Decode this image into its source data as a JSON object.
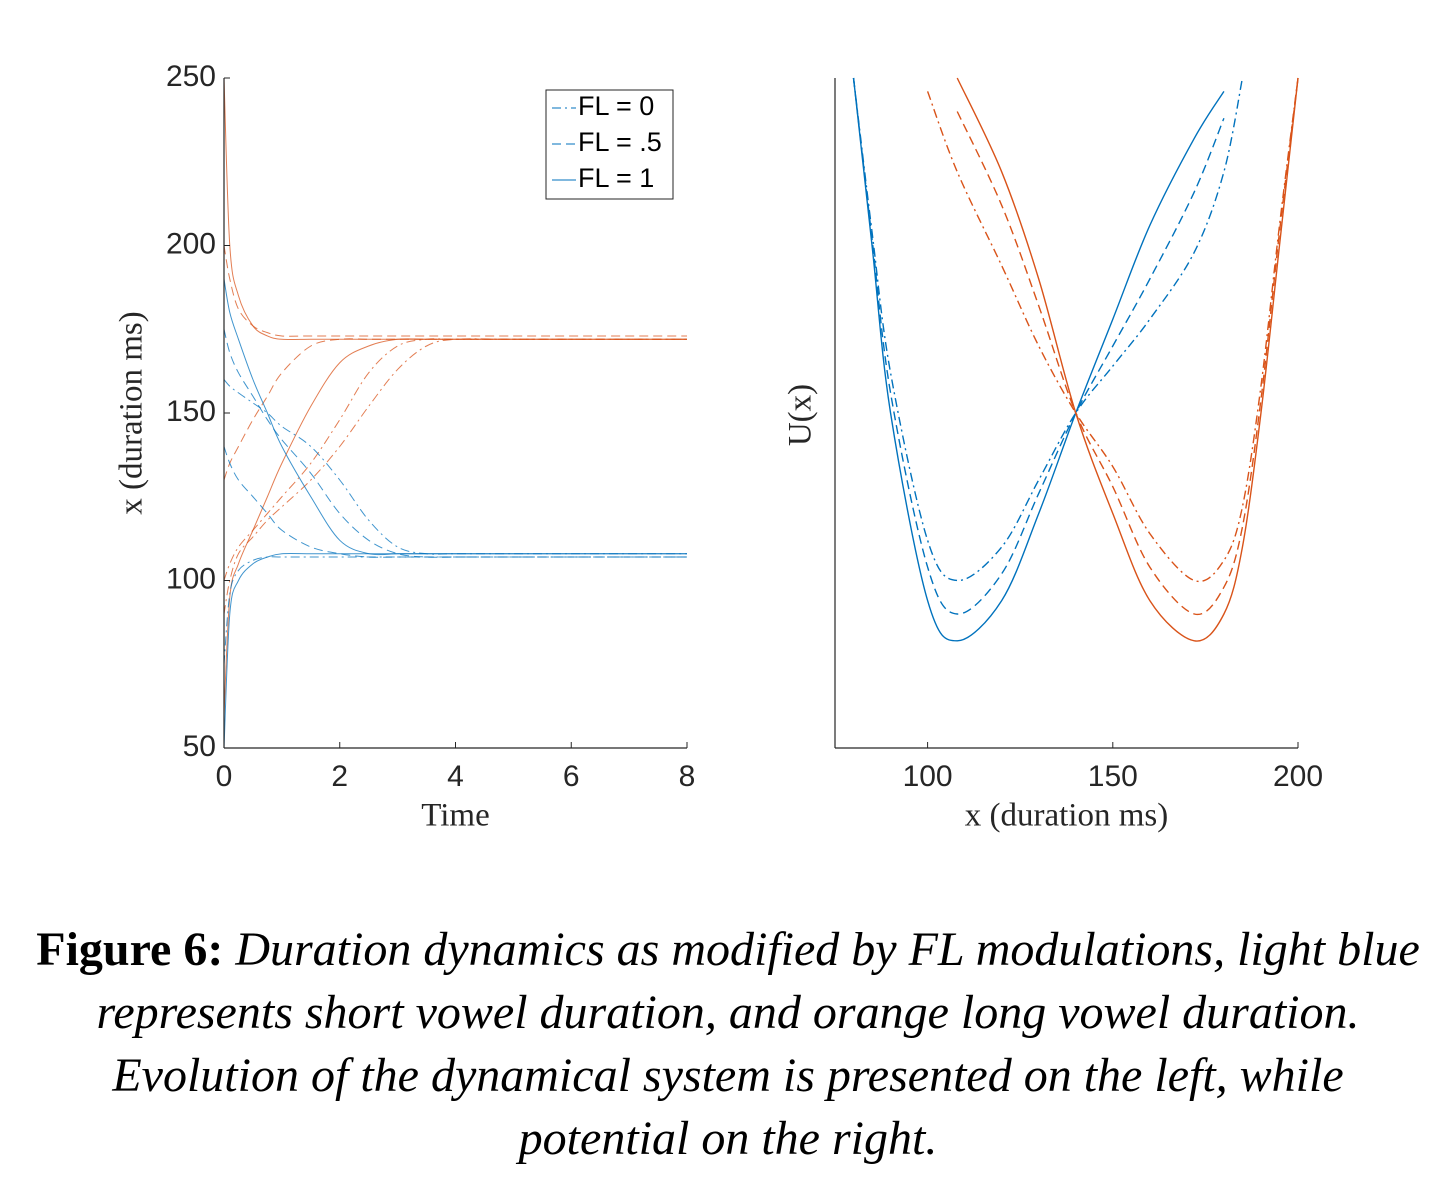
{
  "chart_data": [
    {
      "type": "line",
      "xlabel": "Time",
      "ylabel": "x (duration ms)",
      "xlim": [
        0,
        8
      ],
      "ylim": [
        50,
        250
      ],
      "xticks": [
        0,
        2,
        4,
        6,
        8
      ],
      "yticks": [
        50,
        100,
        150,
        200,
        250
      ],
      "x": [
        0,
        0.1,
        0.25,
        0.5,
        0.75,
        1,
        1.5,
        2,
        2.5,
        3,
        3.5,
        4,
        5,
        6,
        8
      ],
      "legend": {
        "position": "upper right",
        "color": "#0072bd",
        "entries": [
          {
            "label": "FL = 0",
            "dash": "dashdot"
          },
          {
            "label": "FL = .5",
            "dash": "dashed"
          },
          {
            "label": "FL = 1",
            "dash": "solid"
          }
        ]
      },
      "series": [
        {
          "color": "#d95319",
          "dash": "solid",
          "values": [
            250,
            200,
            185,
            176,
            173,
            172,
            172,
            172,
            172,
            172,
            172,
            172,
            172,
            172,
            172
          ]
        },
        {
          "color": "#d95319",
          "dash": "dashed",
          "values": [
            200,
            190,
            181,
            176,
            174,
            173,
            173,
            173,
            173,
            173,
            173,
            173,
            173,
            173,
            173
          ]
        },
        {
          "color": "#d95319",
          "dash": "solid",
          "values": [
            60,
            95,
            105,
            115,
            125,
            135,
            152,
            165,
            170,
            172,
            172,
            172,
            172,
            172,
            172
          ]
        },
        {
          "color": "#d95319",
          "dash": "dashdot",
          "values": [
            100,
            105,
            110,
            115,
            120,
            125,
            135,
            148,
            162,
            170,
            172,
            172,
            172,
            172,
            172
          ]
        },
        {
          "color": "#d95319",
          "dash": "dashed",
          "values": [
            130,
            135,
            140,
            148,
            155,
            162,
            170,
            172,
            172,
            172,
            172,
            172,
            172,
            172,
            172
          ]
        },
        {
          "color": "#d95319",
          "dash": "dashdot",
          "values": [
            90,
            100,
            108,
            113,
            118,
            122,
            130,
            140,
            152,
            163,
            170,
            172,
            172,
            172,
            172
          ]
        },
        {
          "color": "#0072bd",
          "dash": "solid",
          "values": [
            190,
            180,
            172,
            160,
            150,
            140,
            125,
            112,
            108,
            108,
            108,
            108,
            108,
            108,
            108
          ]
        },
        {
          "color": "#0072bd",
          "dash": "dashdot",
          "values": [
            160,
            158,
            156,
            153,
            150,
            146,
            140,
            130,
            118,
            110,
            108,
            108,
            108,
            108,
            108
          ]
        },
        {
          "color": "#0072bd",
          "dash": "solid",
          "values": [
            50,
            90,
            100,
            105,
            107,
            108,
            108,
            108,
            108,
            108,
            108,
            108,
            108,
            108,
            108
          ]
        },
        {
          "color": "#0072bd",
          "dash": "dashed",
          "values": [
            140,
            135,
            130,
            125,
            120,
            115,
            110,
            108,
            107,
            107,
            107,
            107,
            107,
            107,
            107
          ]
        },
        {
          "color": "#0072bd",
          "dash": "dashed",
          "values": [
            175,
            168,
            162,
            155,
            148,
            142,
            132,
            120,
            112,
            108,
            107,
            107,
            107,
            107,
            107
          ]
        },
        {
          "color": "#0072bd",
          "dash": "dashdot",
          "values": [
            75,
            96,
            103,
            106,
            107,
            107,
            107,
            107,
            107,
            107,
            107,
            107,
            107,
            107,
            107
          ]
        }
      ]
    },
    {
      "type": "line",
      "xlabel": "x (duration ms)",
      "ylabel": "U(x)",
      "xlim": [
        75,
        200
      ],
      "ylim": [
        0,
        100
      ],
      "xticks": [
        100,
        150,
        200
      ],
      "x": [
        80,
        85,
        90,
        100,
        108,
        120,
        130,
        140,
        150,
        160,
        172,
        180,
        185,
        190,
        195,
        200
      ],
      "series": [
        {
          "color": "#0072bd",
          "dash": "solid",
          "values": [
            100,
            75,
            50,
            22,
            16,
            22,
            35,
            50,
            64,
            78,
            91,
            98,
            null,
            null,
            null,
            null
          ]
        },
        {
          "color": "#0072bd",
          "dash": "dashed",
          "values": [
            100,
            76,
            53,
            27,
            20,
            26,
            38,
            50,
            60,
            70,
            83,
            94,
            null,
            null,
            null,
            null
          ]
        },
        {
          "color": "#0072bd",
          "dash": "dashdot",
          "values": [
            100,
            77,
            56,
            31,
            25,
            30,
            40,
            50,
            57,
            64,
            74,
            86,
            100,
            null,
            null,
            null
          ]
        },
        {
          "color": "#d95319",
          "dash": "solid",
          "values": [
            null,
            null,
            null,
            null,
            100,
            86,
            70,
            50,
            35,
            22,
            16,
            20,
            30,
            50,
            75,
            100
          ]
        },
        {
          "color": "#d95319",
          "dash": "dashed",
          "values": [
            null,
            null,
            null,
            null,
            95,
            81,
            66,
            50,
            39,
            27,
            20,
            24,
            33,
            52,
            77,
            100
          ]
        },
        {
          "color": "#d95319",
          "dash": "dashdot",
          "values": [
            null,
            null,
            null,
            98,
            86,
            72,
            60,
            50,
            42,
            32,
            25,
            28,
            36,
            54,
            78,
            100
          ]
        }
      ]
    }
  ],
  "caption": {
    "label": "Figure 6:",
    "text": "Duration dynamics as modified by FL modulations, light blue represents short vowel duration, and orange long vowel duration. Evolution of the dynamical system is presented on the left, while potential on the right."
  }
}
